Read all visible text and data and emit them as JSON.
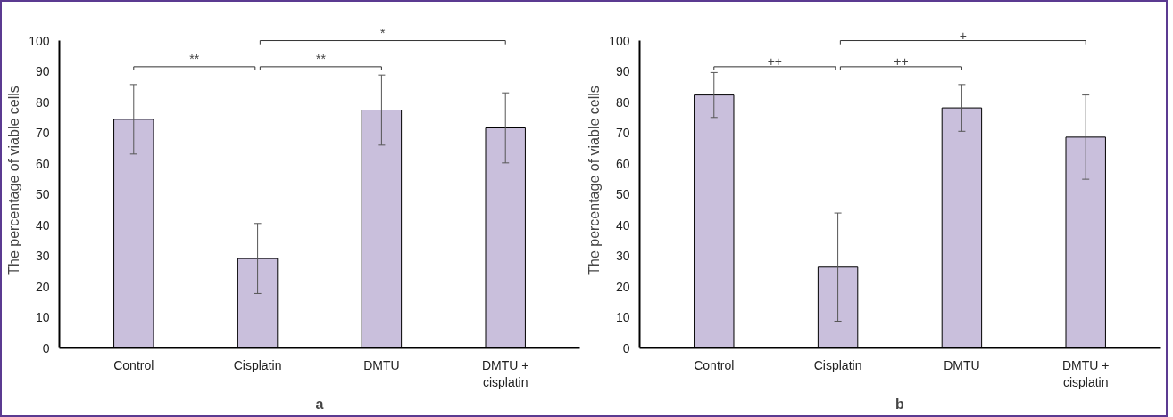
{
  "chart_data": [
    {
      "type": "bar",
      "xlabel": "a",
      "ylabel": "The percentage of viable cells",
      "categories": [
        "Control",
        "Cisplatin",
        "DMTU",
        "DMTU + cisplatin"
      ],
      "values": [
        74.4,
        29.1,
        77.4,
        71.6
      ],
      "errors": [
        11.3,
        11.4,
        11.4,
        11.4
      ],
      "color": "#c9bfdc",
      "ylim": [
        0,
        100
      ],
      "yticks": [
        0,
        10,
        20,
        30,
        40,
        50,
        60,
        70,
        80,
        90,
        100
      ],
      "grid": false,
      "annotations": [
        "**",
        "**",
        "*"
      ]
    },
    {
      "type": "bar",
      "xlabel": "b",
      "ylabel": "The percentage of viable cells",
      "categories": [
        "Control",
        "Cisplatin",
        "DMTU",
        "DMTU + cisplatin"
      ],
      "values": [
        82.3,
        26.3,
        78.1,
        68.6
      ],
      "errors": [
        7.3,
        17.6,
        7.6,
        13.7
      ],
      "color": "#c9bfdc",
      "ylim": [
        0,
        100
      ],
      "yticks": [
        0,
        10,
        20,
        30,
        40,
        50,
        60,
        70,
        80,
        90,
        100
      ],
      "grid": false,
      "annotations": [
        "++",
        "++",
        "+"
      ]
    }
  ]
}
